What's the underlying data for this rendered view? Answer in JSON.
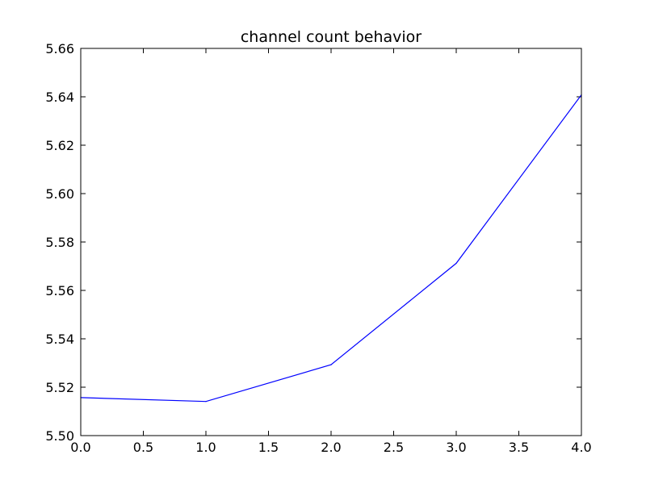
{
  "chart_data": {
    "type": "line",
    "title": "channel count behavior",
    "xlabel": "",
    "ylabel": "",
    "xlim": [
      0.0,
      4.0
    ],
    "ylim": [
      5.5,
      5.66
    ],
    "xticks": [
      "0.0",
      "0.5",
      "1.0",
      "1.5",
      "2.0",
      "2.5",
      "3.0",
      "3.5",
      "4.0"
    ],
    "yticks": [
      "5.50",
      "5.52",
      "5.54",
      "5.56",
      "5.58",
      "5.60",
      "5.62",
      "5.64",
      "5.66"
    ],
    "grid": false,
    "series": [
      {
        "color": "#0000ff",
        "x": [
          0,
          1,
          2,
          3,
          4
        ],
        "y": [
          5.5157,
          5.5141,
          5.5293,
          5.5712,
          5.6408
        ]
      }
    ]
  }
}
